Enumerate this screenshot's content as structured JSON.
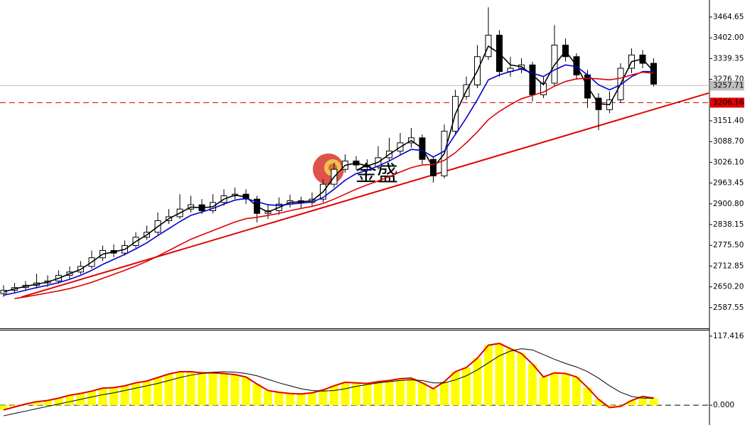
{
  "chart_data": [
    {
      "type": "candlestick",
      "watermark": "金盛",
      "open": [
        2630,
        2640,
        2648,
        2655,
        2662,
        2668,
        2685,
        2695,
        2712,
        2738,
        2760,
        2752,
        2775,
        2800,
        2815,
        2850,
        2862,
        2885,
        2898,
        2880,
        2905,
        2925,
        2930,
        2915,
        2872,
        2880,
        2900,
        2910,
        2905,
        2915,
        2960,
        3005,
        3030,
        3018,
        3012,
        3040,
        3060,
        3085,
        3100,
        3035,
        2985,
        3120,
        3225,
        3260,
        3345,
        3410,
        3300,
        3310,
        3320,
        3230,
        3265,
        3380,
        3345,
        3290,
        3220,
        3185,
        3215,
        3310,
        3350,
        3325
      ],
      "high": [
        2655,
        2662,
        2668,
        2690,
        2685,
        2700,
        2712,
        2728,
        2760,
        2775,
        2778,
        2790,
        2815,
        2835,
        2875,
        2885,
        2930,
        2925,
        2915,
        2930,
        2945,
        2950,
        2945,
        2925,
        2900,
        2920,
        2928,
        2922,
        2935,
        2975,
        3025,
        3050,
        3045,
        3035,
        3075,
        3100,
        3115,
        3130,
        3110,
        3045,
        3140,
        3245,
        3285,
        3380,
        3494,
        3425,
        3345,
        3340,
        3330,
        3285,
        3440,
        3400,
        3355,
        3305,
        3235,
        3240,
        3325,
        3370,
        3365,
        3340
      ],
      "low": [
        2620,
        2630,
        2638,
        2645,
        2650,
        2660,
        2675,
        2688,
        2705,
        2728,
        2740,
        2745,
        2768,
        2792,
        2808,
        2840,
        2855,
        2875,
        2870,
        2872,
        2895,
        2915,
        2900,
        2845,
        2855,
        2868,
        2890,
        2885,
        2895,
        2905,
        2950,
        2995,
        3005,
        2998,
        3005,
        3030,
        3050,
        3070,
        3020,
        2965,
        2978,
        3110,
        3215,
        3250,
        3335,
        3285,
        3285,
        3295,
        3210,
        3220,
        3255,
        3330,
        3275,
        3190,
        3123,
        3175,
        3205,
        3295,
        3310,
        3255
      ],
      "close": [
        2640,
        2648,
        2655,
        2662,
        2668,
        2685,
        2695,
        2712,
        2738,
        2760,
        2752,
        2775,
        2800,
        2815,
        2850,
        2862,
        2885,
        2898,
        2880,
        2905,
        2925,
        2930,
        2915,
        2872,
        2880,
        2900,
        2910,
        2905,
        2915,
        2960,
        3005,
        3030,
        3018,
        3012,
        3040,
        3060,
        3085,
        3100,
        3035,
        2985,
        3120,
        3225,
        3260,
        3345,
        3410,
        3300,
        3310,
        3320,
        3230,
        3265,
        3380,
        3345,
        3290,
        3220,
        3185,
        3215,
        3310,
        3350,
        3325,
        3262
      ],
      "series": [
        {
          "color": "#000000",
          "values": [
            2635,
            2644,
            2652,
            2658,
            2665,
            2676,
            2690,
            2703,
            2725,
            2749,
            2756,
            2763,
            2787,
            2807,
            2832,
            2856,
            2873,
            2891,
            2889,
            2892,
            2915,
            2927,
            2922,
            2893,
            2876,
            2890,
            2905,
            2907,
            2910,
            2937,
            2982,
            3017,
            3024,
            3015,
            3026,
            3050,
            3072,
            3092,
            3068,
            3010,
            3052,
            3172,
            3242,
            3302,
            3377,
            3355,
            3320,
            3315,
            3290,
            3260,
            3320,
            3362,
            3318,
            3255,
            3203,
            3200,
            3262,
            3330,
            3338,
            3300
          ]
        },
        {
          "color": "#0000cc",
          "values": [
            2625,
            2632,
            2640,
            2648,
            2655,
            2663,
            2673,
            2685,
            2700,
            2718,
            2733,
            2748,
            2765,
            2783,
            2805,
            2826,
            2847,
            2866,
            2876,
            2887,
            2900,
            2912,
            2917,
            2907,
            2898,
            2896,
            2900,
            2903,
            2906,
            2920,
            2945,
            2972,
            2992,
            3002,
            3015,
            3030,
            3048,
            3065,
            3062,
            3042,
            3060,
            3110,
            3160,
            3215,
            3275,
            3290,
            3300,
            3308,
            3295,
            3285,
            3305,
            3320,
            3315,
            3290,
            3260,
            3245,
            3260,
            3285,
            3300,
            3300
          ]
        },
        {
          "color": "#e00000",
          "values": [
            null,
            2615,
            2620,
            2626,
            2632,
            2638,
            2645,
            2654,
            2664,
            2676,
            2688,
            2700,
            2713,
            2727,
            2743,
            2760,
            2777,
            2794,
            2807,
            2820,
            2833,
            2846,
            2856,
            2860,
            2866,
            2872,
            2880,
            2887,
            2893,
            2902,
            2915,
            2930,
            2945,
            2958,
            2970,
            2983,
            2997,
            3010,
            3018,
            3020,
            3032,
            3055,
            3085,
            3118,
            3155,
            3180,
            3200,
            3218,
            3228,
            3238,
            3256,
            3270,
            3278,
            3280,
            3278,
            3275,
            3280,
            3290,
            3298,
            3295
          ]
        }
      ],
      "trendline": {
        "x": [
          1.6,
          64
        ],
        "y": [
          2619.3,
          3235.1
        ],
        "color": "#e00000"
      },
      "price_lines": [
        {
          "value": 3257.71,
          "label": "3257.71",
          "color": "#c0c0c0"
        },
        {
          "value": 3206.16,
          "label": "3206.16",
          "color": "#e00000"
        }
      ],
      "ylim": [
        2525,
        3516
      ],
      "yticks": [
        {
          "value": 3464.65,
          "label": "3464.65"
        },
        {
          "value": 3402.0,
          "label": "3402.00"
        },
        {
          "value": 3339.35,
          "label": "3339.35"
        },
        {
          "value": 3276.7,
          "label": "3276.70"
        },
        {
          "value": 3151.4,
          "label": "3151.40"
        },
        {
          "value": 3088.7,
          "label": "3088.70"
        },
        {
          "value": 3026.1,
          "label": "3026.10"
        },
        {
          "value": 2963.45,
          "label": "2963.45"
        },
        {
          "value": 2900.8,
          "label": "2900.80"
        },
        {
          "value": 2838.15,
          "label": "2838.15"
        },
        {
          "value": 2775.5,
          "label": "2775.50"
        },
        {
          "value": 2712.85,
          "label": "2712.85"
        },
        {
          "value": 2650.2,
          "label": "2650.20"
        },
        {
          "value": 2587.55,
          "label": "2587.55"
        }
      ]
    },
    {
      "type": "macd",
      "histogram": {
        "color": "#ffff00",
        "outline": "#e00000",
        "values": [
          -8,
          -3,
          2,
          6,
          8,
          12,
          17,
          20,
          24,
          29,
          30,
          33,
          38,
          41,
          47,
          53,
          57,
          57,
          55,
          55,
          54,
          52,
          48,
          36,
          25,
          22,
          20,
          19,
          21,
          26,
          33,
          39,
          38,
          37,
          40,
          42,
          45,
          46,
          38,
          28,
          40,
          57,
          64,
          80,
          102,
          105,
          96,
          88,
          70,
          48,
          55,
          54,
          48,
          30,
          10,
          -4,
          -2,
          8,
          15,
          12
        ]
      },
      "signal": {
        "color": "#000000",
        "values": [
          -18,
          -14,
          -10,
          -6,
          -2,
          2,
          6,
          10,
          14,
          18,
          21,
          25,
          29,
          33,
          37,
          42,
          47,
          51,
          54,
          56,
          57,
          56,
          54,
          50,
          44,
          38,
          33,
          28,
          25,
          24,
          25,
          28,
          32,
          35,
          38,
          40,
          42,
          43,
          42,
          38,
          38,
          43,
          50,
          60,
          72,
          84,
          92,
          96,
          94,
          86,
          78,
          71,
          65,
          57,
          46,
          33,
          22,
          15,
          12,
          12
        ]
      },
      "ylim": [
        -31.2,
        127.0
      ],
      "yticks": [
        {
          "value": 117.416,
          "label": "117.416"
        },
        {
          "value": 0,
          "label": "0.000"
        }
      ]
    }
  ]
}
